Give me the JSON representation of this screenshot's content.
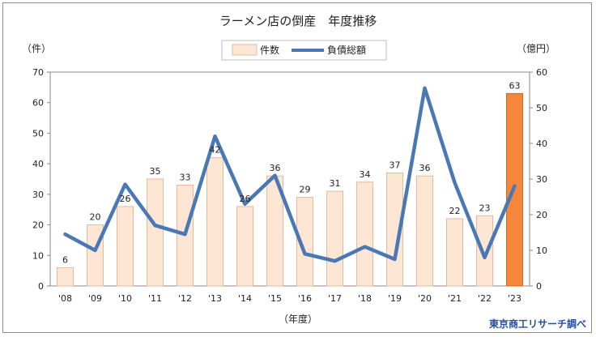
{
  "chart_data": {
    "type": "bar+line",
    "title": "ラーメン店の倒産　年度推移",
    "categories": [
      "'08",
      "'09",
      "'10",
      "'11",
      "'12",
      "'13",
      "'14",
      "'15",
      "'16",
      "'17",
      "'18",
      "'19",
      "'20",
      "'21",
      "'22",
      "'23"
    ],
    "series": [
      {
        "name": "件数",
        "type": "bar",
        "axis": "left",
        "values": [
          6,
          20,
          26,
          35,
          33,
          42,
          26,
          36,
          29,
          31,
          34,
          37,
          36,
          22,
          23,
          63
        ],
        "color": "#fde6d4",
        "edge": "#e8b89a"
      },
      {
        "name": "負債総額",
        "type": "line",
        "axis": "right",
        "values": [
          14.5,
          10,
          28.5,
          17,
          14.5,
          42,
          23,
          31,
          9,
          7,
          11,
          7.5,
          55.5,
          29,
          8,
          28
        ],
        "color": "#4a78b5"
      }
    ],
    "highlight": {
      "index": 15,
      "color": "#f5873a",
      "edge": "#d9661b"
    },
    "left_axis": {
      "label": "（件）",
      "ylim": [
        0,
        70
      ],
      "ticks": [
        0,
        10,
        20,
        30,
        40,
        50,
        60,
        70
      ]
    },
    "right_axis": {
      "label": "（億円）",
      "ylim": [
        0,
        60
      ],
      "ticks": [
        0,
        10,
        20,
        30,
        40,
        50,
        60
      ]
    },
    "xlabel": "（年度）",
    "legend_position": "top-center",
    "grid": false,
    "source": "東京商工リサーチ調べ",
    "source_color": "#1f4ea3"
  }
}
